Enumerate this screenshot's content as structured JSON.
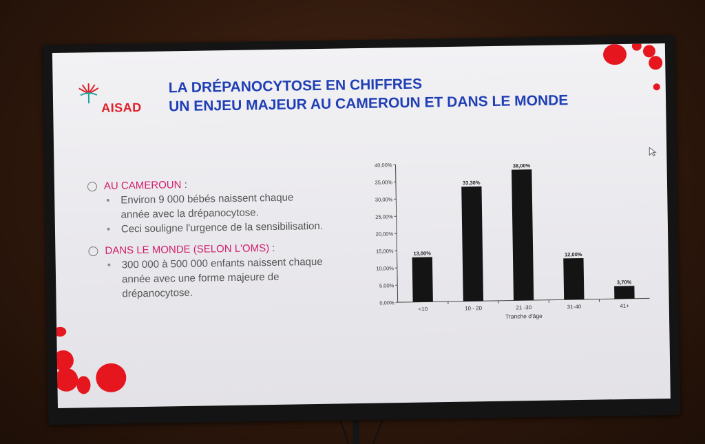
{
  "slide": {
    "logo_text": "AISAD",
    "title_line1": "LA DRÉPANOCYTOSE EN CHIFFRES",
    "title_line2": "UN ENJEU MAJEUR AU CAMEROUN ET DANS LE MONDE"
  },
  "sections": [
    {
      "heading": "AU CAMEROUN",
      "colon": " :",
      "items": [
        "Environ 9 000 bébés naissent chaque",
        "année avec la drépanocytose.",
        "Ceci souligne l'urgence de la sensibilisation."
      ]
    },
    {
      "heading": "DANS LE MONDE (SELON L'OMS)",
      "colon": " :",
      "items": [
        "300 000 à 500 000 enfants naissent chaque",
        "année avec une forme majeure de",
        "drépanocytose."
      ]
    }
  ],
  "chart_data": {
    "type": "bar",
    "categories": [
      "<10",
      "10 - 20",
      "21 -30",
      "31-40",
      "41+"
    ],
    "values": [
      13.0,
      33.3,
      38.0,
      12.0,
      3.7
    ],
    "value_labels": [
      "13,00%",
      "33,30%",
      "38,00%",
      "12,00%",
      "3,70%"
    ],
    "y_ticks": [
      "0,00%",
      "5,00%",
      "10,00%",
      "15,00%",
      "20,00%",
      "25,00%",
      "30,00%",
      "35,00%",
      "40,00%"
    ],
    "ylim": [
      0,
      40
    ],
    "xlabel": "Tranche d'âge",
    "ylabel": "",
    "title": "",
    "bar_color": "#141414"
  }
}
